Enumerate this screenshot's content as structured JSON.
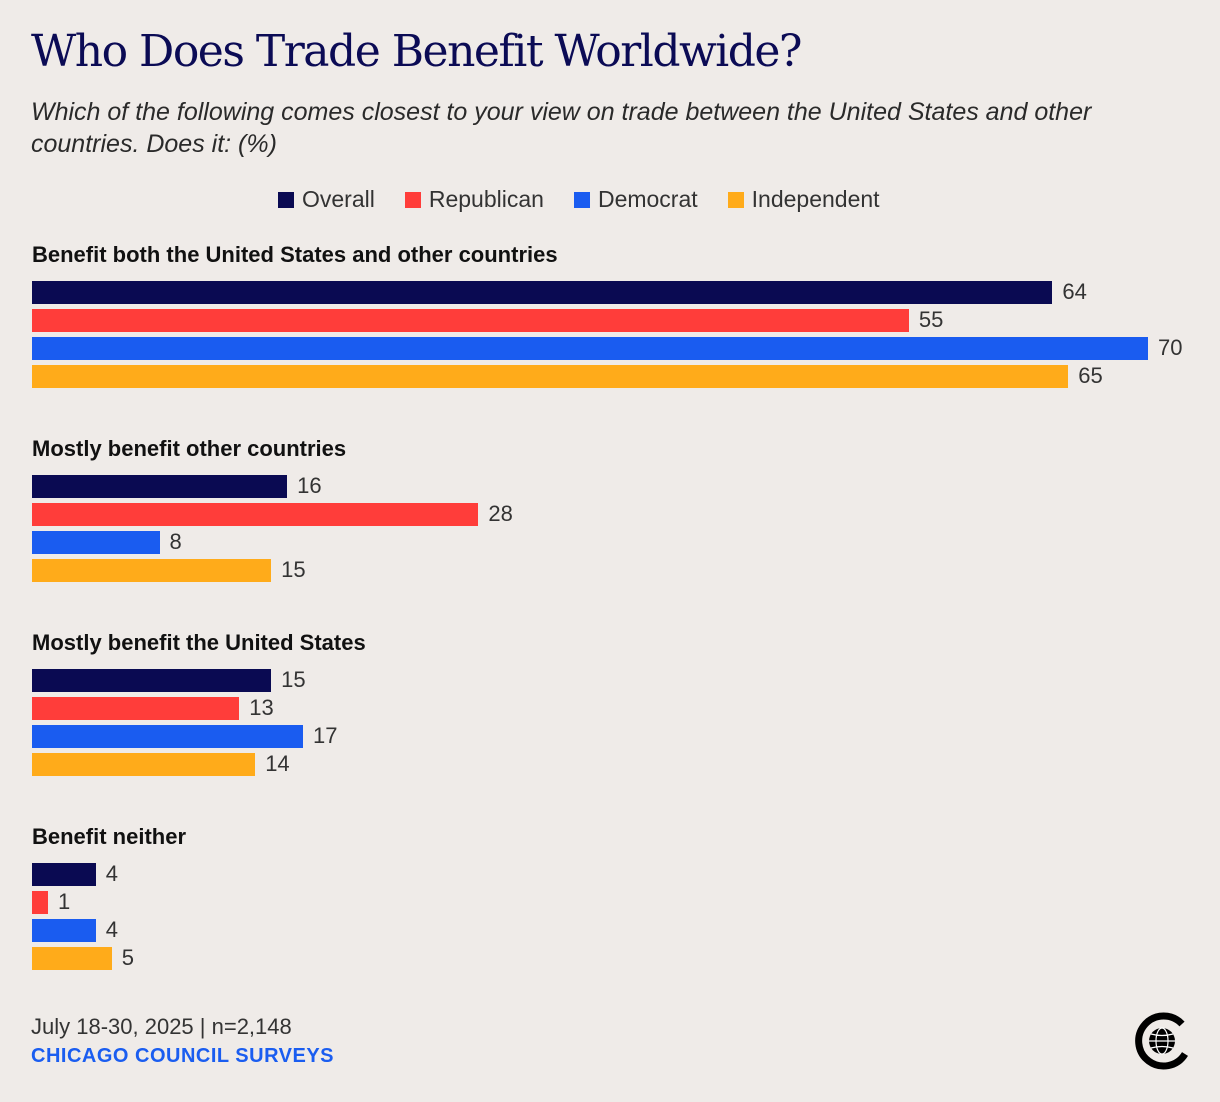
{
  "chart_data": {
    "type": "bar",
    "orientation": "horizontal",
    "title": "Who Does Trade Benefit Worldwide?",
    "subtitle": "Which of the following comes closest to your view on trade between the United States and other countries. Does it: (%)",
    "xlabel": "",
    "ylabel": "",
    "xlim": [
      0,
      70
    ],
    "grid": false,
    "legend_position": "top-center",
    "categories": [
      "Benefit both the United States and other countries",
      "Mostly benefit other countries",
      "Mostly benefit the United States",
      "Benefit neither"
    ],
    "series": [
      {
        "name": "Overall",
        "color": "#0a0a52",
        "values": [
          64,
          16,
          15,
          4
        ]
      },
      {
        "name": "Republican",
        "color": "#ff3d3a",
        "values": [
          55,
          28,
          13,
          1
        ]
      },
      {
        "name": "Democrat",
        "color": "#1a5cf0",
        "values": [
          70,
          8,
          17,
          4
        ]
      },
      {
        "name": "Independent",
        "color": "#ffab1a",
        "values": [
          65,
          15,
          14,
          5
        ]
      }
    ]
  },
  "footer": {
    "date_sample": "July 18-30, 2025 | n=2,148",
    "source": "CHICAGO COUNCIL SURVEYS"
  },
  "logo": {
    "icon": "chicago-council-globe-logo"
  }
}
